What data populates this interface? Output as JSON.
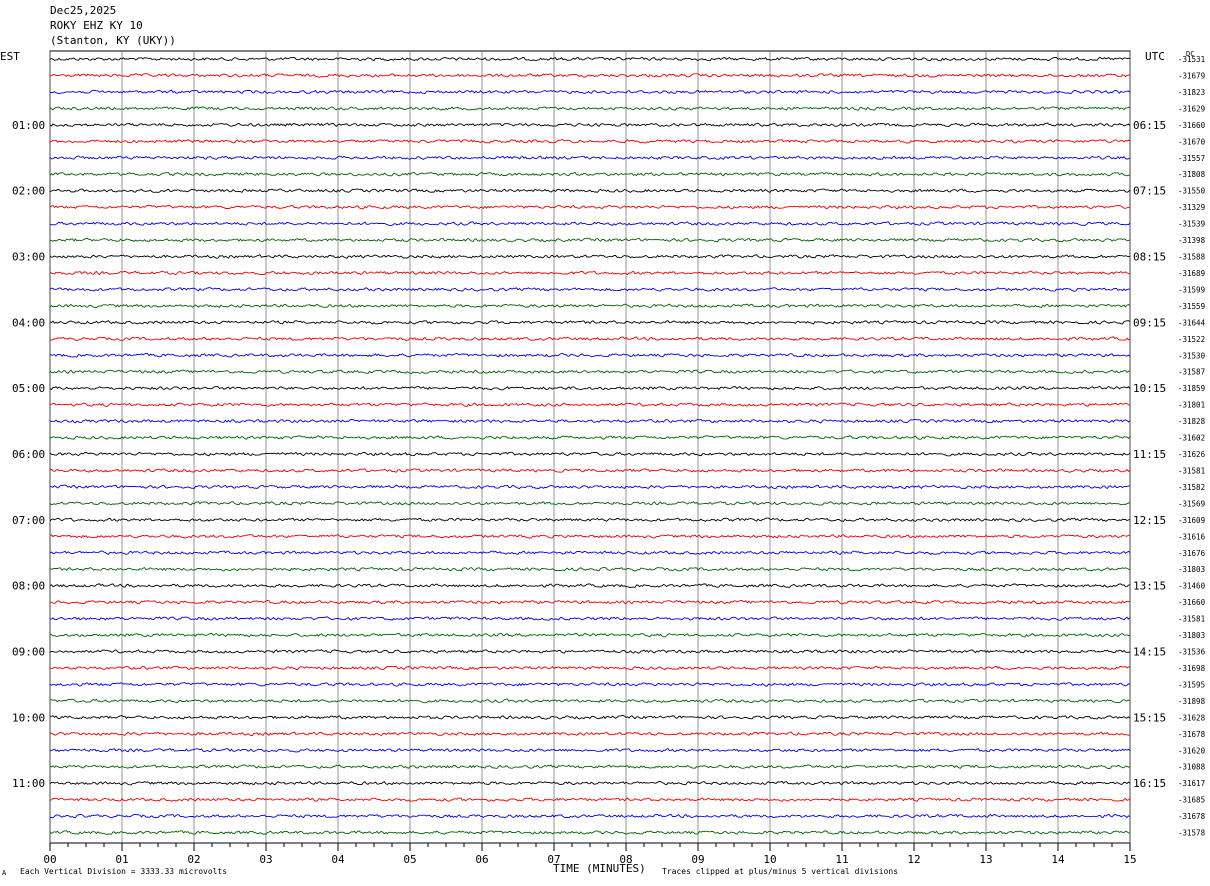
{
  "header": {
    "date": "Dec25,2025",
    "station": "ROKY EHZ KY 10",
    "location": "(Stanton, KY (UKY))"
  },
  "left_zone": "EST",
  "right_zone": "UTC",
  "dc_label": "DC",
  "footer": {
    "scale_note": "Each Vertical Division = 3333.33 microvolts",
    "x_axis_title": "TIME (MINUTES)",
    "clip_note": "Traces clipped at plus/minus 5 vertical divisions",
    "corner_mark": "A"
  },
  "colors": {
    "trace_cycle": [
      "#000000",
      "#ee0000",
      "#0000ee",
      "#006400"
    ],
    "grid": "#666666"
  },
  "chart_data": {
    "type": "line",
    "title": "ROKY EHZ KY 10",
    "xlabel": "TIME (MINUTES)",
    "xlim": [
      0,
      15
    ],
    "x_ticks": [
      "00",
      "01",
      "02",
      "03",
      "04",
      "05",
      "06",
      "07",
      "08",
      "09",
      "10",
      "11",
      "12",
      "13",
      "14",
      "15"
    ],
    "trace_count": 48,
    "minutes_per_trace": 15,
    "left_hour_labels": [
      "01:00",
      "02:00",
      "03:00",
      "04:00",
      "05:00",
      "06:00",
      "07:00",
      "08:00",
      "09:00",
      "10:00",
      "11:00"
    ],
    "right_hour_labels": [
      "06:15",
      "07:15",
      "08:15",
      "09:15",
      "10:15",
      "11:15",
      "12:15",
      "13:15",
      "14:15",
      "15:15",
      "16:15"
    ],
    "dc_offsets": [
      "-31531",
      "-31679",
      "-31823",
      "-31629",
      "-31660",
      "-31670",
      "-31557",
      "-31808",
      "-31550",
      "-31329",
      "-31539",
      "-31398",
      "-31588",
      "-31689",
      "-31599",
      "-31559",
      "-31644",
      "-31522",
      "-31530",
      "-31587",
      "-31859",
      "-31801",
      "-31828",
      "-31602",
      "-31626",
      "-31581",
      "-31582",
      "-31569",
      "-31609",
      "-31616",
      "-31676",
      "-31803",
      "-31460",
      "-31660",
      "-31581",
      "-31803",
      "-31536",
      "-31698",
      "-31595",
      "-31898",
      "-31628",
      "-31678",
      "-31620",
      "-31088",
      "-31617",
      "-31685",
      "-31678",
      "-31578"
    ],
    "series": [
      {
        "name": "EST",
        "values": []
      }
    ]
  }
}
